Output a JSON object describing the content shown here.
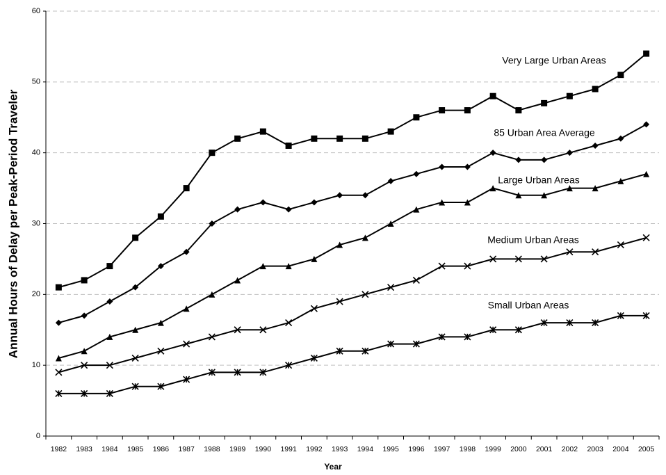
{
  "chart_data": {
    "type": "line",
    "x_label": "Year",
    "y_label": "Annual Hours of Delay per Peak-Period Traveler",
    "categories": [
      1982,
      1983,
      1984,
      1985,
      1986,
      1987,
      1988,
      1989,
      1990,
      1991,
      1992,
      1993,
      1994,
      1995,
      1996,
      1997,
      1998,
      1999,
      2000,
      2001,
      2002,
      2003,
      2004,
      2005
    ],
    "ylim": [
      0,
      60
    ],
    "yticks": [
      0,
      10,
      20,
      30,
      40,
      50,
      60
    ],
    "grid": true,
    "series": [
      {
        "name": "Very Large Urban Areas",
        "color": "#000000",
        "marker": "square",
        "values": [
          21,
          22,
          24,
          28,
          31,
          35,
          40,
          42,
          43,
          41,
          42,
          42,
          42,
          43,
          45,
          46,
          46,
          48,
          46,
          47,
          48,
          49,
          51,
          54
        ]
      },
      {
        "name": "85 Urban Area Average",
        "color": "#000000",
        "marker": "diamond",
        "values": [
          16,
          17,
          19,
          21,
          24,
          26,
          30,
          32,
          33,
          32,
          33,
          34,
          34,
          36,
          37,
          38,
          38,
          40,
          39,
          39,
          40,
          41,
          42,
          44
        ]
      },
      {
        "name": "Large Urban Areas",
        "color": "#000000",
        "marker": "triangle",
        "values": [
          11,
          12,
          14,
          15,
          16,
          18,
          20,
          22,
          24,
          24,
          25,
          27,
          28,
          30,
          32,
          33,
          33,
          35,
          34,
          34,
          35,
          35,
          36,
          37
        ]
      },
      {
        "name": "Medium Urban Areas",
        "color": "#000000",
        "marker": "x",
        "values": [
          9,
          10,
          10,
          11,
          12,
          13,
          14,
          15,
          15,
          16,
          18,
          19,
          20,
          21,
          22,
          24,
          24,
          25,
          25,
          25,
          26,
          26,
          27,
          28
        ]
      },
      {
        "name": "Small Urban Areas",
        "color": "#000000",
        "marker": "star",
        "values": [
          6,
          6,
          6,
          7,
          7,
          8,
          9,
          9,
          9,
          10,
          11,
          12,
          12,
          13,
          13,
          14,
          14,
          15,
          15,
          16,
          16,
          16,
          17,
          17
        ]
      }
    ]
  }
}
